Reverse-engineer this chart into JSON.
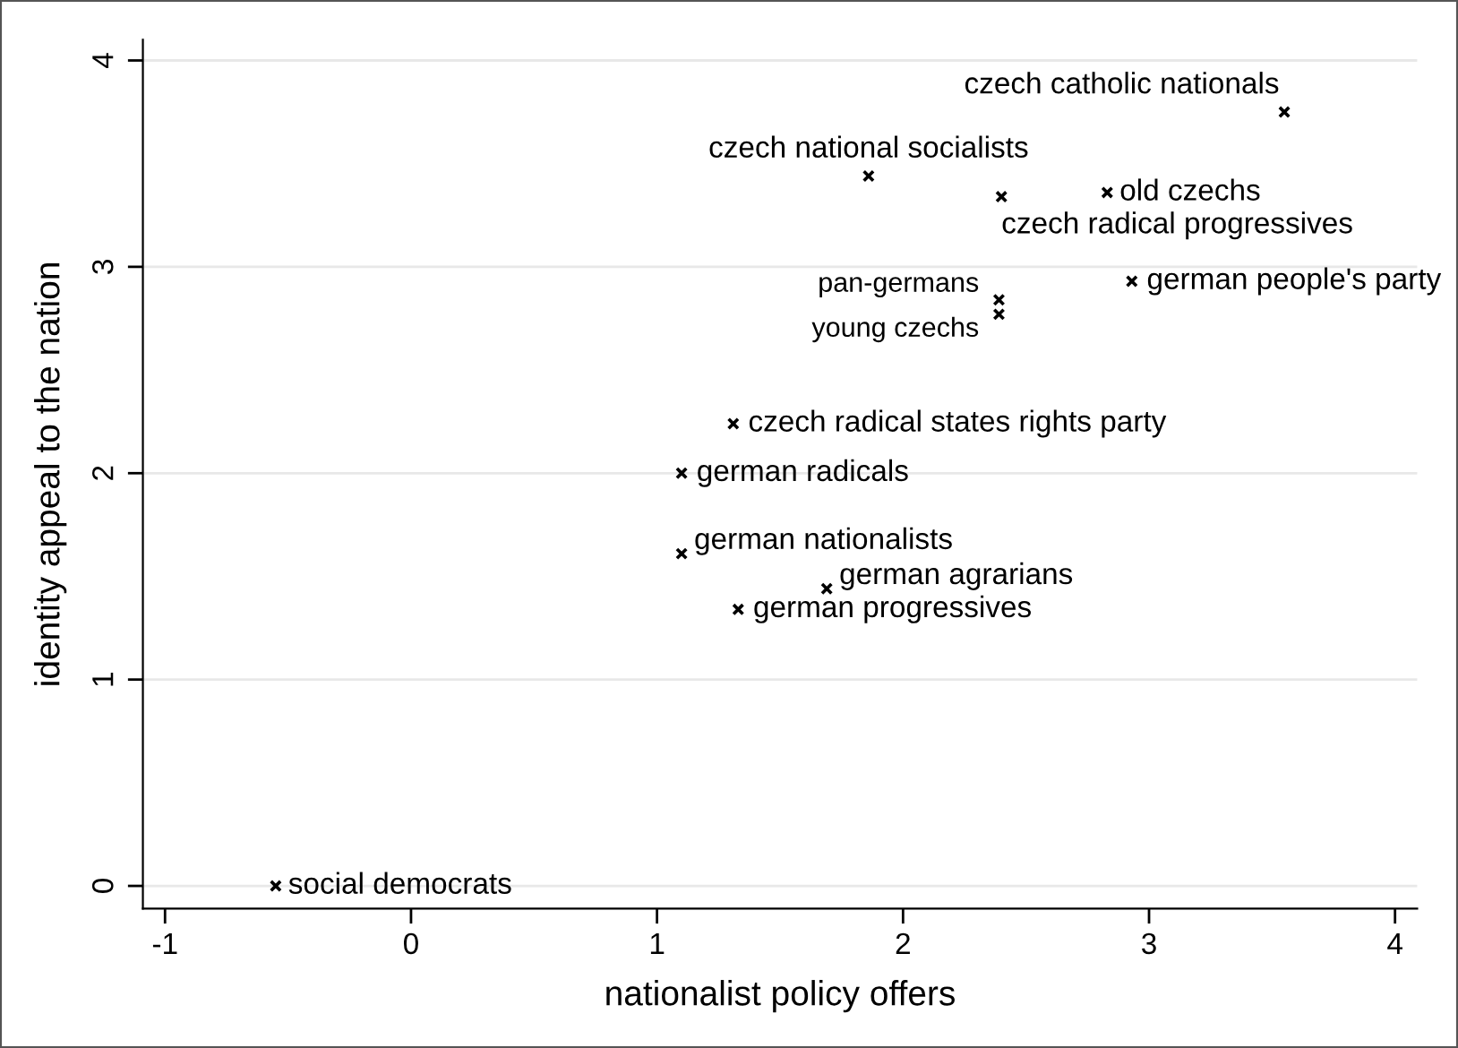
{
  "chart_data": {
    "type": "scatter",
    "xlabel": "nationalist policy offers",
    "ylabel": "identity appeal to the nation",
    "series": [
      {
        "color": "#000000",
        "x": [
          -0.55,
          1.31,
          1.1,
          1.1,
          1.69,
          1.33,
          3.55,
          1.86,
          2.4,
          2.83,
          2.93,
          2.39,
          2.39
        ],
        "values": [
          0.0,
          2.24,
          2.0,
          1.61,
          1.44,
          1.34,
          3.75,
          3.44,
          3.34,
          3.36,
          2.93,
          2.84,
          2.77
        ]
      }
    ],
    "annotations": [
      {
        "text": "social democrats",
        "x": -0.55,
        "y": 0.0
      },
      {
        "text": "czech radical states rights party",
        "x": 1.31,
        "y": 2.24
      },
      {
        "text": "german radicals",
        "x": 1.1,
        "y": 2.0
      },
      {
        "text": "german nationalists",
        "x": 1.1,
        "y": 1.61
      },
      {
        "text": "german agrarians",
        "x": 1.69,
        "y": 1.44
      },
      {
        "text": "german progressives",
        "x": 1.33,
        "y": 1.34
      },
      {
        "text": "czech catholic nationals",
        "x": 3.55,
        "y": 3.75
      },
      {
        "text": "czech national socialists",
        "x": 1.86,
        "y": 3.44
      },
      {
        "text": "czech radical progressives",
        "x": 2.4,
        "y": 3.34
      },
      {
        "text": "old czechs",
        "x": 2.83,
        "y": 3.36
      },
      {
        "text": "german people's party",
        "x": 2.93,
        "y": 2.93
      },
      {
        "text": "pan-germans",
        "x": 2.39,
        "y": 2.84
      },
      {
        "text": "young czechs",
        "x": 2.39,
        "y": 2.77
      }
    ],
    "xlim": [
      -1.09,
      4.09
    ],
    "ylim": [
      -0.11,
      4.1
    ],
    "xticks": [
      -1,
      0,
      1,
      2,
      3,
      4
    ],
    "yticks": [
      0,
      1,
      2,
      3,
      4
    ],
    "grid": "y",
    "marker": "cross"
  }
}
